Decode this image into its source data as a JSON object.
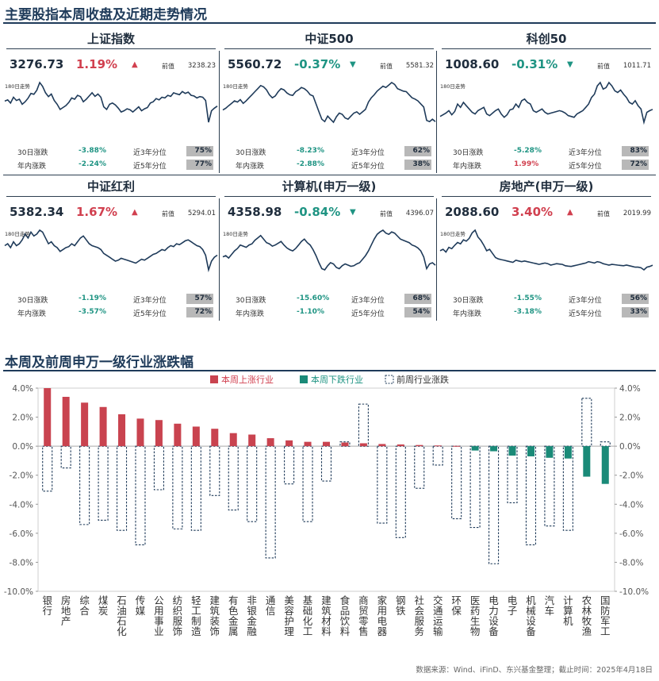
{
  "section1_title": "主要股指本周收盘及近期走势情况",
  "section2_title": "本周及前周申万一级行业涨跌幅",
  "footer": "数据来源：Wind、iFinD、东兴基金整理；截止时间：2025年4月18日",
  "labels": {
    "prev": "前值",
    "trend180": "180日走势",
    "d30": "30日涨跌",
    "ytd": "年内涨跌",
    "pct3y": "近3年分位",
    "pct5y": "近5年分位"
  },
  "colors": {
    "up": "#d1404f",
    "down": "#1f9483",
    "line": "#1f3b5a",
    "bar_up": "#c9434f",
    "bar_down": "#1a8a78",
    "prev_border": "#1f3b5a"
  },
  "indices": [
    {
      "name": "上证指数",
      "value": "3276.73",
      "change": "1.19%",
      "direction": "up",
      "prev": "3238.23",
      "d30": "-3.88%",
      "ytd": "-2.24%",
      "pct3y": "75%",
      "pct5y": "77%",
      "trend": [
        3315,
        3325,
        3300,
        3345,
        3320,
        3330,
        3290,
        3310,
        3338,
        3375,
        3368,
        3400,
        3460,
        3430,
        3380,
        3350,
        3370,
        3320,
        3290,
        3250,
        3265,
        3280,
        3305,
        3340,
        3330,
        3360,
        3350,
        3310,
        3330,
        3355,
        3380,
        3352,
        3370,
        3345,
        3270,
        3250,
        3290,
        3300,
        3285,
        3260,
        3230,
        3240,
        3255,
        3248,
        3230,
        3250,
        3270,
        3240,
        3255,
        3265,
        3300,
        3310,
        3335,
        3325,
        3345,
        3340,
        3360,
        3352,
        3380,
        3372,
        3365,
        3390,
        3375,
        3385,
        3360,
        3355,
        3340,
        3350,
        3345,
        3320,
        3150,
        3240,
        3260,
        3276
      ]
    },
    {
      "name": "中证500",
      "value": "5560.72",
      "change": "-0.37%",
      "direction": "down",
      "prev": "5581.32",
      "d30": "-8.23%",
      "ytd": "-2.88%",
      "pct3y": "62%",
      "pct5y": "38%",
      "trend": [
        5750,
        5780,
        5820,
        5860,
        5900,
        5880,
        5920,
        5860,
        5900,
        5950,
        6000,
        6050,
        6100,
        6150,
        6130,
        6080,
        6000,
        5950,
        5980,
        6050,
        6100,
        6080,
        6030,
        6000,
        5990,
        6050,
        6080,
        6120,
        6100,
        6060,
        6000,
        5980,
        5850,
        5720,
        5600,
        5560,
        5650,
        5600,
        5550,
        5640,
        5700,
        5680,
        5620,
        5600,
        5650,
        5700,
        5720,
        5680,
        5720,
        5760,
        5880,
        5950,
        6000,
        6060,
        6100,
        6140,
        6120,
        6160,
        6200,
        6170,
        6100,
        6080,
        6060,
        6050,
        6000,
        5950,
        5930,
        5900,
        5850,
        5800,
        5580,
        5560,
        5600,
        5560
      ]
    },
    {
      "name": "科创50",
      "value": "1008.60",
      "change": "-0.31%",
      "direction": "down",
      "prev": "1011.71",
      "d30": "-5.28%",
      "ytd": "1.99%",
      "pct3y": "83%",
      "pct5y": "72%",
      "trend": [
        965,
        975,
        985,
        1000,
        975,
        995,
        1040,
        1020,
        1050,
        1030,
        1010,
        990,
        980,
        1000,
        1010,
        1020,
        980,
        970,
        985,
        1000,
        1010,
        980,
        960,
        975,
        1005,
        1010,
        1040,
        1020,
        1060,
        1070,
        1050,
        1040,
        1000,
        990,
        1000,
        1010,
        990,
        980,
        985,
        990,
        995,
        1000,
        995,
        985,
        970,
        965,
        960,
        980,
        990,
        1000,
        1020,
        1040,
        1080,
        1100,
        1150,
        1170,
        1130,
        1140,
        1170,
        1150,
        1120,
        1110,
        1125,
        1100,
        1080,
        1050,
        1040,
        1060,
        1030,
        1010,
        930,
        990,
        1000,
        1008
      ]
    },
    {
      "name": "中证红利",
      "value": "5382.34",
      "change": "1.67%",
      "direction": "up",
      "prev": "5294.01",
      "d30": "-1.19%",
      "ytd": "-3.57%",
      "pct3y": "57%",
      "pct5y": "72%",
      "trend": [
        5480,
        5500,
        5460,
        5520,
        5480,
        5500,
        5540,
        5600,
        5560,
        5620,
        5580,
        5600,
        5640,
        5620,
        5560,
        5500,
        5520,
        5480,
        5460,
        5420,
        5440,
        5460,
        5470,
        5500,
        5480,
        5520,
        5560,
        5580,
        5540,
        5500,
        5480,
        5470,
        5460,
        5440,
        5400,
        5380,
        5360,
        5340,
        5320,
        5330,
        5350,
        5340,
        5330,
        5320,
        5310,
        5300,
        5320,
        5340,
        5330,
        5350,
        5370,
        5390,
        5400,
        5420,
        5440,
        5430,
        5460,
        5480,
        5470,
        5500,
        5490,
        5510,
        5530,
        5540,
        5520,
        5500,
        5480,
        5470,
        5440,
        5380,
        5230,
        5320,
        5360,
        5382
      ]
    },
    {
      "name": "计算机(申万一级)",
      "value": "4358.98",
      "change": "-0.84%",
      "direction": "down",
      "prev": "4396.07",
      "d30": "-15.60%",
      "ytd": "-1.10%",
      "pct3y": "68%",
      "pct5y": "54%",
      "trend": [
        4500,
        4520,
        4480,
        4540,
        4600,
        4640,
        4700,
        4680,
        4660,
        4700,
        4720,
        4780,
        4820,
        4860,
        4800,
        4740,
        4720,
        4680,
        4700,
        4730,
        4760,
        4700,
        4650,
        4620,
        4600,
        4640,
        4700,
        4760,
        4800,
        4740,
        4700,
        4620,
        4520,
        4400,
        4300,
        4280,
        4350,
        4400,
        4380,
        4320,
        4300,
        4350,
        4380,
        4360,
        4340,
        4350,
        4380,
        4400,
        4460,
        4520,
        4600,
        4700,
        4800,
        4880,
        4920,
        4950,
        4900,
        4880,
        4920,
        4900,
        4850,
        4800,
        4780,
        4760,
        4740,
        4700,
        4680,
        4650,
        4600,
        4500,
        4300,
        4380,
        4400,
        4359
      ]
    },
    {
      "name": "房地产(申万一级)",
      "value": "2088.60",
      "change": "3.40%",
      "direction": "up",
      "prev": "2019.99",
      "d30": "-1.55%",
      "ytd": "-3.18%",
      "pct3y": "56%",
      "pct5y": "33%",
      "trend": [
        2300,
        2320,
        2280,
        2350,
        2330,
        2380,
        2420,
        2400,
        2460,
        2440,
        2480,
        2560,
        2600,
        2500,
        2450,
        2380,
        2300,
        2320,
        2260,
        2200,
        2180,
        2170,
        2160,
        2150,
        2140,
        2130,
        2160,
        2150,
        2140,
        2150,
        2140,
        2130,
        2120,
        2110,
        2100,
        2110,
        2120,
        2110,
        2090,
        2100,
        2110,
        2105,
        2100,
        2080,
        2075,
        2070,
        2080,
        2090,
        2100,
        2110,
        2120,
        2140,
        2130,
        2120,
        2140,
        2130,
        2110,
        2100,
        2090,
        2100,
        2095,
        2090,
        2085,
        2080,
        2090,
        2080,
        2070,
        2060,
        2060,
        2050,
        2020,
        2060,
        2070,
        2089
      ]
    }
  ],
  "chart_data": {
    "type": "bar",
    "title": "本周及前周申万一级行业涨跌幅",
    "categories": [
      "银行",
      "房地产",
      "综合",
      "煤炭",
      "石油石化",
      "传媒",
      "公用事业",
      "纺织服饰",
      "轻工制造",
      "建筑装饰",
      "有色金属",
      "非银金融",
      "通信",
      "美容护理",
      "基础化工",
      "建筑材料",
      "食品饮料",
      "商贸零售",
      "家用电器",
      "钢铁",
      "社会服务",
      "交通运输",
      "环保",
      "医药生物",
      "电力设备",
      "电子",
      "机械设备",
      "汽车",
      "计算机",
      "农林牧渔",
      "国防军工"
    ],
    "series": [
      {
        "name": "本周上涨行业",
        "kind": "this_week",
        "values": [
          4.0,
          3.4,
          3.0,
          2.7,
          2.2,
          1.9,
          1.8,
          1.55,
          1.35,
          1.2,
          0.9,
          0.8,
          0.55,
          0.4,
          0.3,
          0.3,
          0.25,
          0.2,
          0.15,
          0.12,
          0.08,
          0.05,
          0.02,
          -0.3,
          -0.35,
          -0.65,
          -0.7,
          -0.8,
          -0.85,
          -2.1,
          -2.6
        ]
      },
      {
        "name": "本周下跌行业",
        "kind": "legend_only"
      },
      {
        "name": "前周行业涨跌",
        "kind": "prev_week",
        "values": [
          -3.1,
          -1.5,
          -5.4,
          -5.1,
          -5.8,
          -6.8,
          -3.0,
          -5.7,
          -5.8,
          -3.4,
          -4.4,
          -5.2,
          -7.7,
          -2.6,
          -5.2,
          -2.4,
          0.3,
          2.9,
          -5.3,
          -6.3,
          -2.9,
          -1.3,
          -5.0,
          -5.6,
          -8.1,
          -3.9,
          -6.8,
          -5.5,
          -5.8,
          3.3,
          0.3
        ]
      }
    ],
    "yticks": [
      "4.0%",
      "2.0%",
      "0.0%",
      "-2.0%",
      "-4.0%",
      "-6.0%",
      "-8.0%",
      "-10.0%"
    ],
    "ylim": [
      -10,
      4
    ],
    "legend_position": "top"
  }
}
